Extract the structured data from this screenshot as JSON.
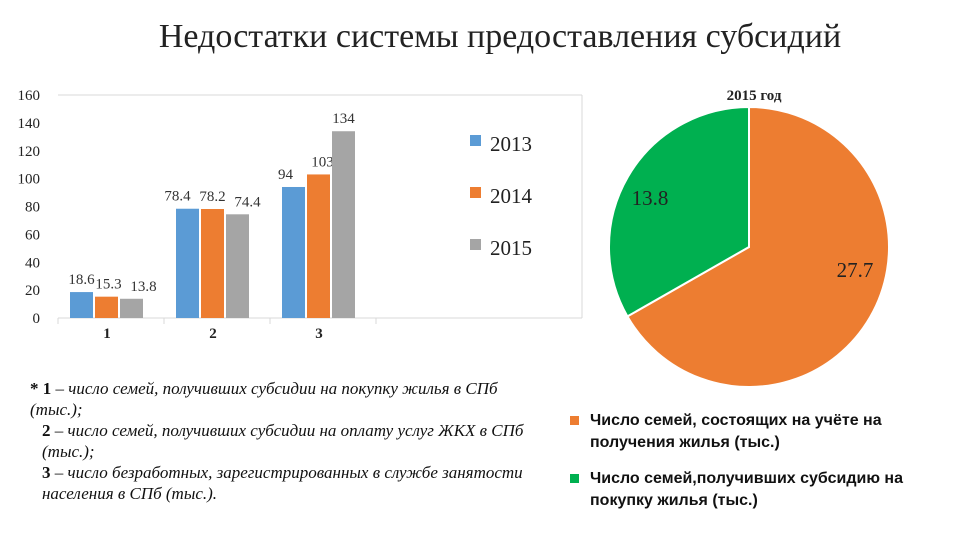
{
  "slide": {
    "title": "Недостатки системы предоставления субсидий"
  },
  "chart_data": [
    {
      "type": "bar",
      "categories": [
        "1",
        "2",
        "3"
      ],
      "series": [
        {
          "name": "2013",
          "values": [
            18.6,
            78.4,
            94
          ],
          "color": "#5b9bd5"
        },
        {
          "name": "2014",
          "values": [
            15.3,
            78.2,
            103
          ],
          "color": "#ed7d31"
        },
        {
          "name": "2015",
          "values": [
            13.8,
            74.4,
            134
          ],
          "color": "#a5a5a5"
        }
      ],
      "yticks": [
        "0",
        "20",
        "40",
        "60",
        "80",
        "100",
        "120",
        "140",
        "160"
      ],
      "ylim": [
        0,
        160
      ],
      "legend_position": "right",
      "grid": false
    },
    {
      "type": "pie",
      "title": "2015 год",
      "slices": [
        {
          "label": "Число семей, состоящих на учёте на получения жилья (тыс.)",
          "value": 27.7,
          "color": "#ed7d31"
        },
        {
          "label": "Число семей,получивших субсидию на покупку жилья (тыс.)",
          "value": 13.8,
          "color": "#00b050"
        }
      ],
      "legend_position": "bottom"
    }
  ],
  "footnote": {
    "line1_marker": "* 1",
    "line1_text": " – число семей, получивших субсидии на покупку жилья в СПб (тыс.);",
    "line2_marker": "2",
    "line2_text": " – число семей, получивших субсидии на оплату услуг ЖКХ в СПб (тыс.);",
    "line3_marker": "3",
    "line3_text": " – число безработных, зарегистрированных в службе занятости населения в СПб (тыс.)."
  }
}
